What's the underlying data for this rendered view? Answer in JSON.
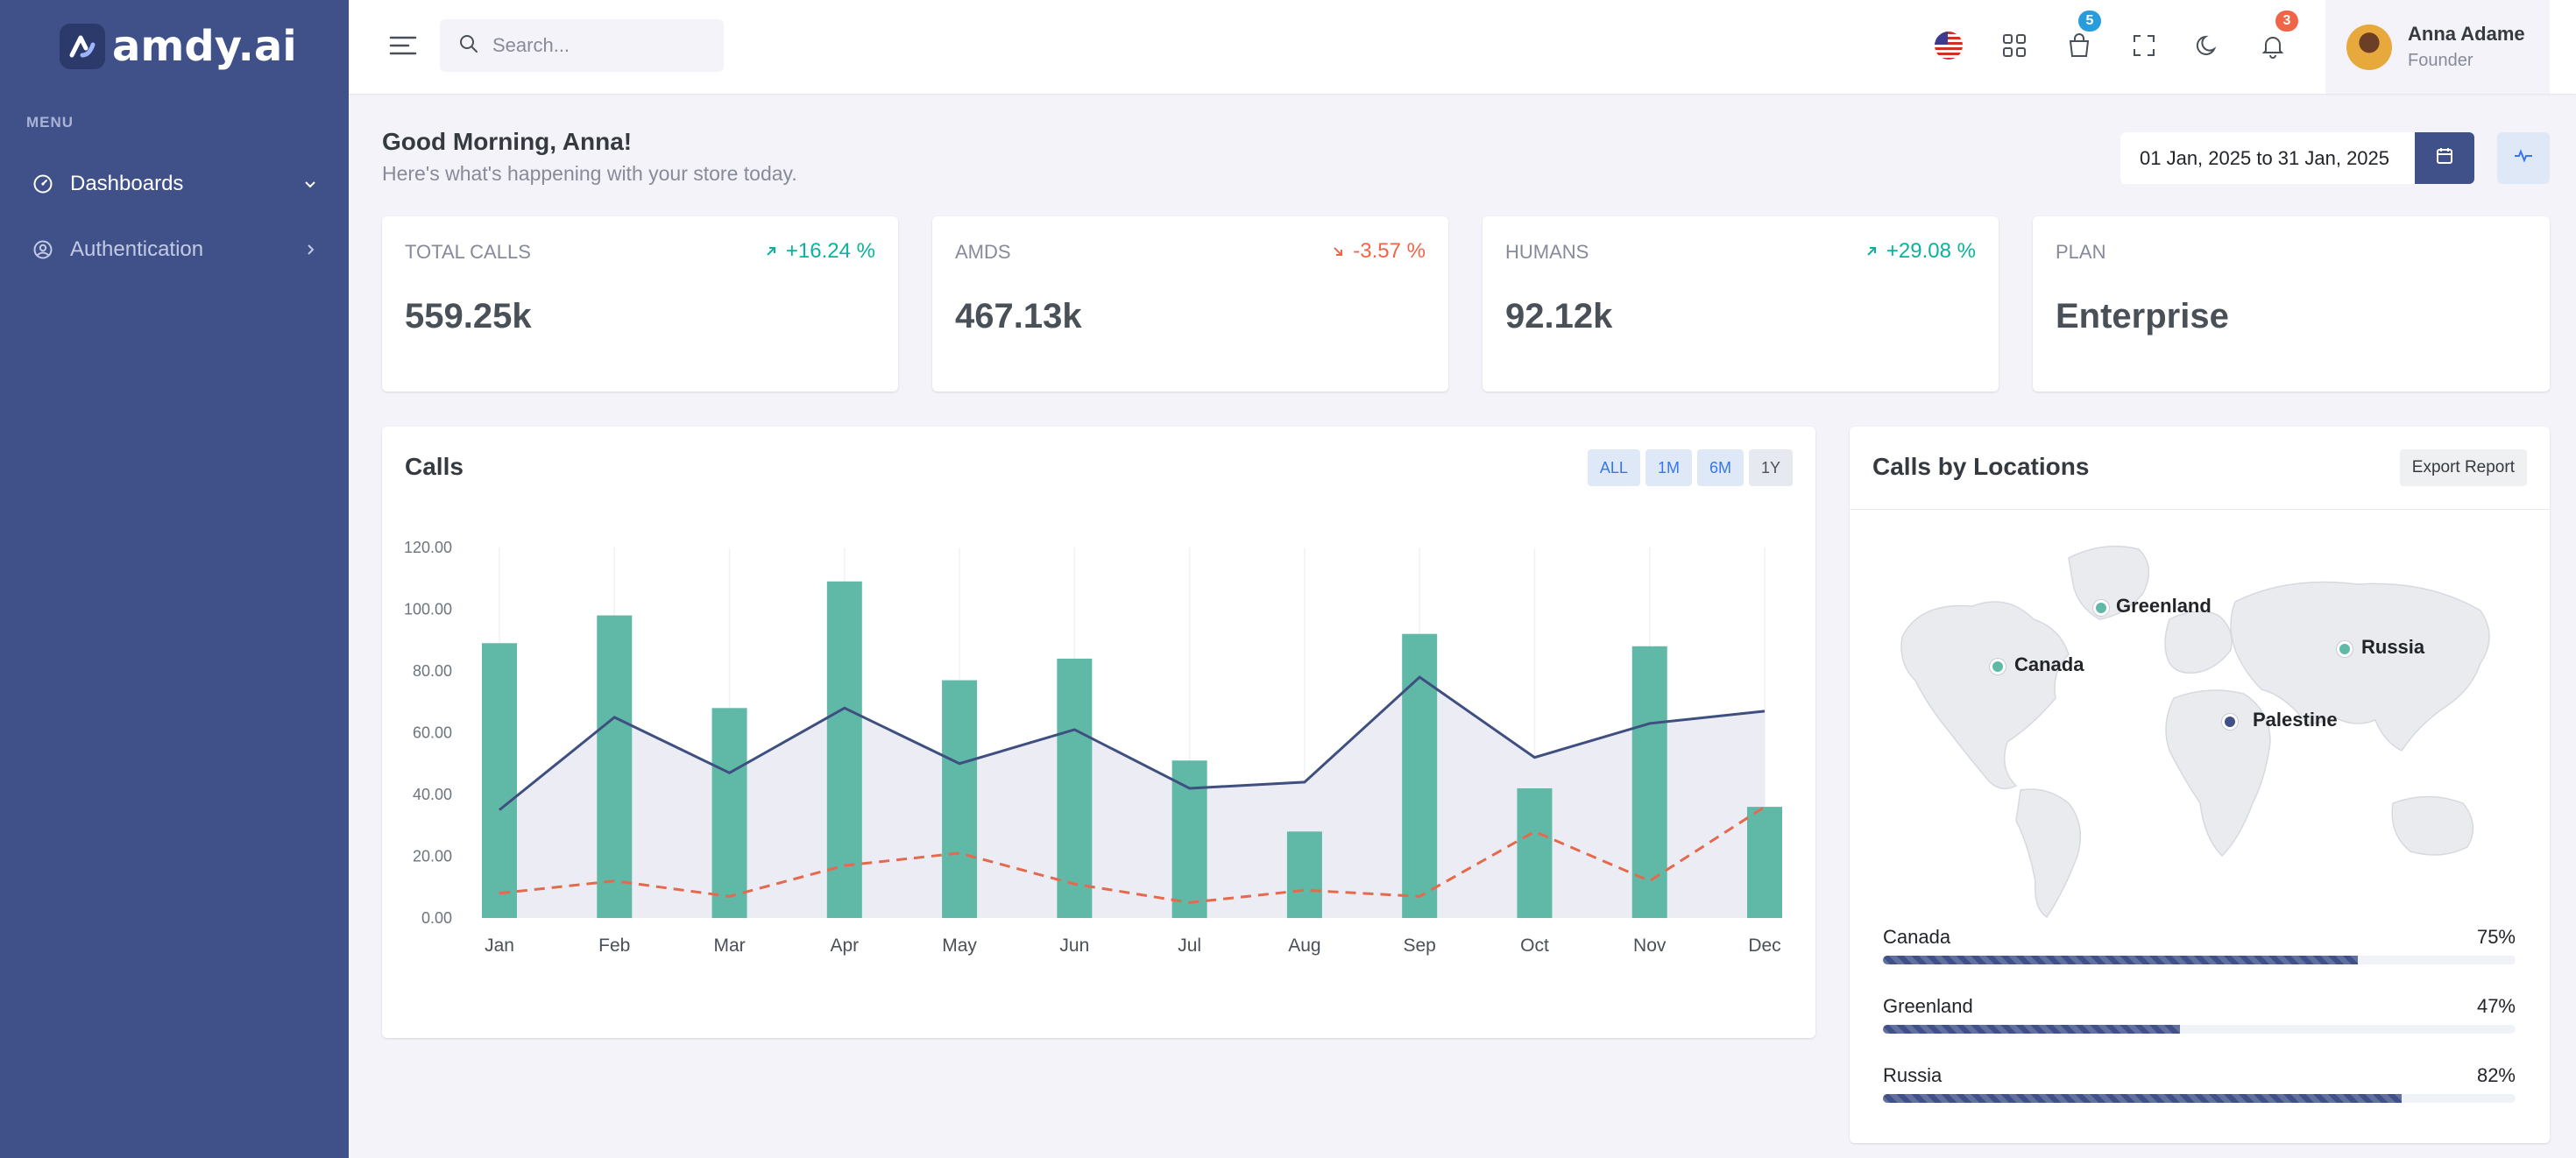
{
  "brand": {
    "name": "amdy.ai"
  },
  "sidebar": {
    "menu_title": "MENU",
    "items": [
      {
        "label": "Dashboards",
        "icon": "dashboard-icon"
      },
      {
        "label": "Authentication",
        "icon": "user-circle-icon"
      }
    ]
  },
  "topbar": {
    "search_placeholder": "Search...",
    "cart_badge": "5",
    "notifications_badge": "3",
    "user": {
      "name": "Anna Adame",
      "role": "Founder"
    }
  },
  "greeting": {
    "title": "Good Morning, Anna!",
    "subtitle": "Here's what's happening with your store today.",
    "date_range": "01 Jan, 2025 to 31 Jan, 2025"
  },
  "stats": [
    {
      "label": "TOTAL CALLS",
      "value": "559.25k",
      "change": "+16.24 %",
      "trend": "up"
    },
    {
      "label": "AMDS",
      "value": "467.13k",
      "change": "-3.57 %",
      "trend": "down"
    },
    {
      "label": "HUMANS",
      "value": "92.12k",
      "change": "+29.08 %",
      "trend": "up"
    },
    {
      "label": "PLAN",
      "value": "Enterprise",
      "change": "",
      "trend": "none"
    }
  ],
  "calls_card": {
    "title": "Calls",
    "ranges": [
      "ALL",
      "1M",
      "6M",
      "1Y"
    ],
    "active_range": "1Y"
  },
  "chart_data": {
    "type": "bar",
    "categories": [
      "Jan",
      "Feb",
      "Mar",
      "Apr",
      "May",
      "Jun",
      "Jul",
      "Aug",
      "Sep",
      "Oct",
      "Nov",
      "Dec"
    ],
    "ylim": [
      0,
      120
    ],
    "yticks": [
      "0.00",
      "20.00",
      "40.00",
      "60.00",
      "80.00",
      "100.00",
      "120.00"
    ],
    "series": [
      {
        "kind": "bar",
        "color": "#5fb9a6",
        "values": [
          89,
          98,
          68,
          109,
          77,
          84,
          51,
          28,
          92,
          42,
          88,
          36
        ]
      },
      {
        "kind": "area-line",
        "color": "#3e4f80",
        "values": [
          35,
          65,
          47,
          68,
          50,
          61,
          42,
          44,
          78,
          52,
          63,
          67
        ]
      },
      {
        "kind": "dashed-line",
        "color": "#e5694d",
        "values": [
          8,
          12,
          7,
          17,
          21,
          11,
          5,
          9,
          7,
          28,
          12,
          36
        ]
      }
    ],
    "grid": "vertical",
    "legend": "none"
  },
  "locations_card": {
    "title": "Calls by Locations",
    "export_label": "Export Report",
    "markers": [
      {
        "name": "Greenland",
        "color": "#5fb9a6"
      },
      {
        "name": "Canada",
        "color": "#5fb9a6"
      },
      {
        "name": "Russia",
        "color": "#5fb9a6"
      },
      {
        "name": "Palestine",
        "color": "#405189"
      }
    ],
    "progress": [
      {
        "label": "Canada",
        "percent_label": "75%",
        "value": 0.75
      },
      {
        "label": "Greenland",
        "percent_label": "47%",
        "value": 0.47
      },
      {
        "label": "Russia",
        "percent_label": "82%",
        "value": 0.82
      }
    ]
  },
  "colors": {
    "sidebar": "#405189",
    "accent": "#405189",
    "success": "#0ab39c",
    "danger": "#f06548",
    "badge_blue": "#299cdb",
    "badge_red": "#f06548"
  }
}
